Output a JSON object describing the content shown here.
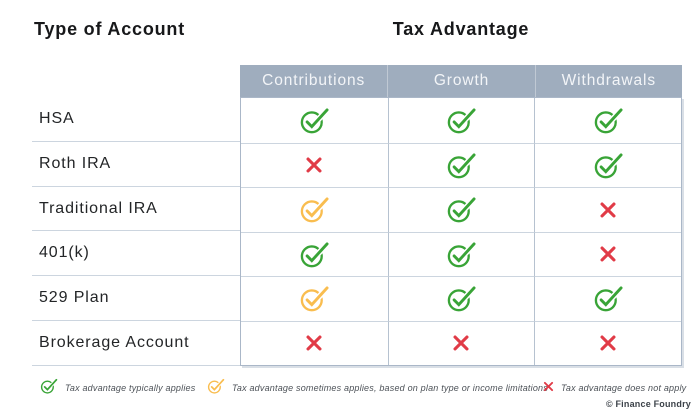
{
  "titles": {
    "left": "Type of Account",
    "right": "Tax Advantage"
  },
  "table": {
    "columns": [
      "Contributions",
      "Growth",
      "Withdrawals"
    ],
    "rows": [
      {
        "label": "HSA",
        "cells": [
          "check-green",
          "check-green",
          "check-green"
        ]
      },
      {
        "label": "Roth IRA",
        "cells": [
          "x-red",
          "check-green",
          "check-green"
        ]
      },
      {
        "label": "Traditional IRA",
        "cells": [
          "check-amber",
          "check-green",
          "x-red"
        ]
      },
      {
        "label": "401(k)",
        "cells": [
          "check-green",
          "check-green",
          "x-red"
        ]
      },
      {
        "label": "529 Plan",
        "cells": [
          "check-amber",
          "check-green",
          "check-green"
        ]
      },
      {
        "label": "Brokerage Account",
        "cells": [
          "x-red",
          "x-red",
          "x-red"
        ]
      }
    ]
  },
  "chart_data": {
    "type": "table",
    "title": "Tax Advantage",
    "row_header_title": "Type of Account",
    "columns": [
      "Contributions",
      "Growth",
      "Withdrawals"
    ],
    "row_labels": [
      "HSA",
      "Roth IRA",
      "Traditional IRA",
      "401(k)",
      "529 Plan",
      "Brokerage Account"
    ],
    "values": [
      [
        "applies",
        "applies",
        "applies"
      ],
      [
        "does-not-apply",
        "applies",
        "applies"
      ],
      [
        "sometimes-applies",
        "applies",
        "does-not-apply"
      ],
      [
        "applies",
        "applies",
        "does-not-apply"
      ],
      [
        "sometimes-applies",
        "applies",
        "applies"
      ],
      [
        "does-not-apply",
        "does-not-apply",
        "does-not-apply"
      ]
    ],
    "value_symbols": {
      "applies": "green circled checkmark",
      "sometimes-applies": "amber circled checkmark",
      "does-not-apply": "red x"
    }
  },
  "legend": {
    "items": [
      {
        "icon": "check-green",
        "label": "Tax advantage typically applies"
      },
      {
        "icon": "check-amber",
        "label": "Tax advantage sometimes applies, based on plan type or income limitations"
      },
      {
        "icon": "x-red",
        "label": "Tax advantage does not apply"
      }
    ]
  },
  "footer": {
    "credit": "© Finance Foundry"
  },
  "colors": {
    "green": "#39a437",
    "amber": "#f9bd4f",
    "red": "#e13b47",
    "header_bg": "#9fadbe",
    "header_text": "#f3f5f8",
    "grid_line": "#ccd5df",
    "table_border": "#aab7c8"
  }
}
